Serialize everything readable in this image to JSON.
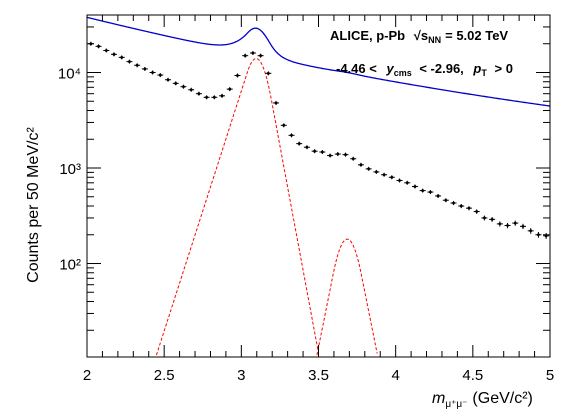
{
  "chart_data": {
    "type": "line",
    "xlabel": "m",
    "xlabel_sub": "μ⁺μ⁻",
    "xlabel_unit": "(GeV/c²)",
    "ylabel": "Counts per 50 MeV/c²",
    "xlim": [
      2.0,
      5.0
    ],
    "ylim": [
      10.5,
      40000
    ],
    "y_scale": "log",
    "x_ticks": [
      "2",
      "2.5",
      "3",
      "3.5",
      "4",
      "4.5",
      "5"
    ],
    "y_ticks": [
      "10²",
      "10³",
      "10⁴"
    ],
    "annotations": {
      "line1_prefix": "ALICE, p-Pb",
      "line1_energy": "√s",
      "line1_energy_sub": "NN",
      "line1_value": "= 5.02 TeV",
      "line2_lo": "-4.46 <",
      "line2_y": "y",
      "line2_y_sub": "cms",
      "line2_hi": "< -2.96,",
      "line2_pt": "p",
      "line2_pt_sub": "T",
      "line2_cut": "> 0"
    },
    "series": [
      {
        "name": "data",
        "style": "points",
        "color": "#000000",
        "x": [
          2.025,
          2.075,
          2.125,
          2.175,
          2.225,
          2.275,
          2.325,
          2.375,
          2.425,
          2.475,
          2.525,
          2.575,
          2.625,
          2.675,
          2.725,
          2.775,
          2.825,
          2.875,
          2.925,
          2.975,
          3.025,
          3.075,
          3.125,
          3.175,
          3.225,
          3.275,
          3.325,
          3.375,
          3.425,
          3.475,
          3.525,
          3.575,
          3.625,
          3.675,
          3.725,
          3.775,
          3.825,
          3.875,
          3.925,
          3.975,
          4.025,
          4.075,
          4.125,
          4.175,
          4.225,
          4.275,
          4.325,
          4.375,
          4.425,
          4.475,
          4.525,
          4.575,
          4.625,
          4.675,
          4.725,
          4.775,
          4.825,
          4.875,
          4.925,
          4.975
        ],
        "y": [
          20000,
          18800,
          17000,
          15500,
          14400,
          13000,
          11900,
          10900,
          10000,
          9400,
          8400,
          7700,
          7100,
          6600,
          6000,
          5500,
          5500,
          5700,
          6700,
          9300,
          15000,
          16000,
          15000,
          9800,
          4800,
          2800,
          2200,
          1800,
          1650,
          1500,
          1470,
          1350,
          1400,
          1380,
          1250,
          1080,
          980,
          910,
          850,
          800,
          740,
          700,
          640,
          580,
          560,
          510,
          460,
          430,
          400,
          380,
          350,
          300,
          290,
          260,
          250,
          265,
          245,
          220,
          200,
          195
        ]
      },
      {
        "name": "total fit",
        "style": "solid",
        "color": "#0000cc"
      },
      {
        "name": "J/psi signal",
        "style": "dashed",
        "color": "#ff0000",
        "peak_x": 3.096,
        "peak_y": 14000
      },
      {
        "name": "psi(2S) signal",
        "style": "dashed",
        "color": "#ff0000",
        "peak_x": 3.686,
        "peak_y": 180
      }
    ]
  }
}
